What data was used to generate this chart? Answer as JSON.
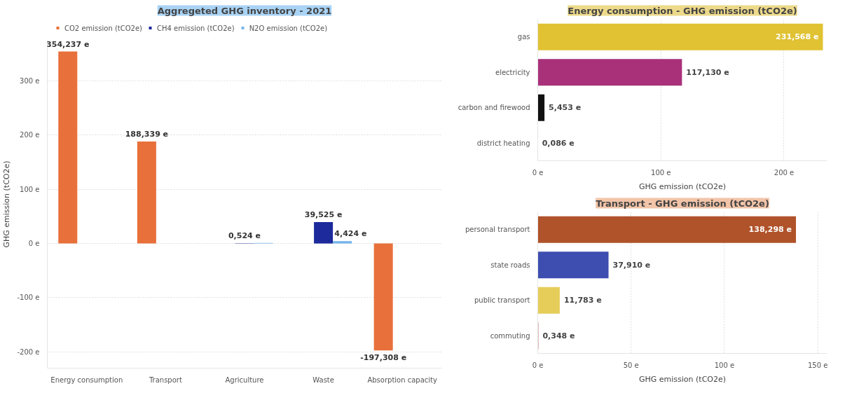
{
  "chart_data": [
    {
      "type": "bar",
      "title": "Aggregeted GHG inventory - 2021",
      "ylabel": "GHG emission (tCO2e)",
      "categories": [
        "Energy consumption",
        "Transport",
        "Agriculture",
        "Waste",
        "Absorption capacity"
      ],
      "series": [
        {
          "name": "CO2 emission (tCO2e)",
          "color": "#e8703a",
          "values": [
            354.237,
            188.339,
            null,
            null,
            -197.308
          ],
          "value_labels": [
            "354,237 e",
            "188,339 e",
            null,
            null,
            "-197,308 e"
          ]
        },
        {
          "name": "CH4 emission (tCO2e)",
          "color": "#1c2a9c",
          "values": [
            null,
            null,
            0.524,
            39.525,
            null
          ],
          "value_labels": [
            null,
            null,
            "0,524 e",
            "39,525 e",
            null
          ]
        },
        {
          "name": "N2O emission (tCO2e)",
          "color": "#76b6ea",
          "values": [
            null,
            null,
            1,
            4.424,
            null
          ],
          "value_labels": [
            null,
            null,
            null,
            "4,424 e",
            null
          ]
        }
      ],
      "ylim": [
        -230,
        375
      ],
      "yticks": [
        {
          "value": -200,
          "label": "-200 e"
        },
        {
          "value": -100,
          "label": "-100 e"
        },
        {
          "value": 0,
          "label": "0 e"
        },
        {
          "value": 100,
          "label": "100 e"
        },
        {
          "value": 200,
          "label": "200 e"
        },
        {
          "value": 300,
          "label": "300 e"
        }
      ],
      "grid": "y",
      "legend": "top left"
    },
    {
      "type": "bar",
      "orientation": "horizontal",
      "title": "Energy consumption - GHG emission (tCO2e)",
      "xlabel": "GHG emission (tCO2e)",
      "categories": [
        "gas",
        "electricity",
        "carbon and firewood",
        "district heating"
      ],
      "values": [
        231.568,
        117.13,
        5.453,
        0.086
      ],
      "value_labels": [
        "231,568 e",
        "117,130 e",
        "5,453 e",
        "0,086 e"
      ],
      "colors": [
        "#e0c232",
        "#a8317a",
        "#111111",
        "#b04040"
      ],
      "xlim": [
        0,
        235
      ],
      "xticks": [
        {
          "value": 0,
          "label": "0 e"
        },
        {
          "value": 100,
          "label": "100 e"
        },
        {
          "value": 200,
          "label": "200 e"
        }
      ],
      "grid": "x"
    },
    {
      "type": "bar",
      "orientation": "horizontal",
      "title": "Transport - GHG emission (tCO2e)",
      "xlabel": "GHG emission (tCO2e)",
      "categories": [
        "personal transport",
        "state roads",
        "public transport",
        "commuting"
      ],
      "values": [
        138.298,
        37.91,
        11.783,
        0.348
      ],
      "value_labels": [
        "138,298 e",
        "37,910 e",
        "11,783 e",
        "0,348 e"
      ],
      "colors": [
        "#b0522a",
        "#3d4db0",
        "#e6cd5a",
        "#c06060"
      ],
      "xlim": [
        0,
        155
      ],
      "xticks": [
        {
          "value": 0,
          "label": "0 e"
        },
        {
          "value": 50,
          "label": "50 e"
        },
        {
          "value": 100,
          "label": "100 e"
        },
        {
          "value": 150,
          "label": "150 e"
        }
      ],
      "grid": "x"
    }
  ]
}
